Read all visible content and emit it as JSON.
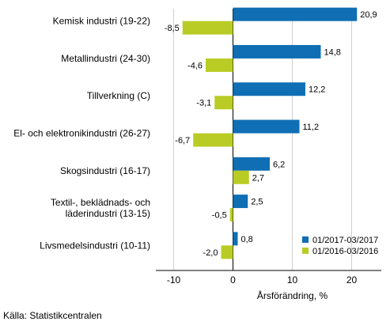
{
  "chart_data": {
    "type": "bar",
    "orientation": "horizontal",
    "categories": [
      [
        "Kemisk industri (19-22)"
      ],
      [
        "Metallindustri (24-30)"
      ],
      [
        "Tillverkning (C)"
      ],
      [
        "El- och elektronikindustri (26-27)"
      ],
      [
        "Skogsindustri (16-17)"
      ],
      [
        "Textil-, beklädnads- och",
        "läderindustri (13-15)"
      ],
      [
        "Livsmedelsindustri (10-11)"
      ]
    ],
    "series": [
      {
        "name": "01/2017-03/2017",
        "color": "#0f6eb4",
        "values": [
          20.9,
          14.8,
          12.2,
          11.2,
          6.2,
          2.5,
          0.8
        ],
        "labels": [
          "20,9",
          "14,8",
          "12,2",
          "11,2",
          "6,2",
          "2,5",
          "0,8"
        ]
      },
      {
        "name": "01/2016-03/2016",
        "color": "#b9cc25",
        "values": [
          -8.5,
          -4.6,
          -3.1,
          -6.7,
          2.7,
          -0.5,
          -2.0
        ],
        "labels": [
          "-8,5",
          "-4,6",
          "-3,1",
          "-6,7",
          "2,7",
          "-0,5",
          "-2,0"
        ]
      }
    ],
    "xlabel": "Årsförändring, %",
    "xlim": [
      -13,
      25
    ],
    "xticks": [
      -10,
      0,
      10,
      20
    ],
    "xtick_labels": [
      "-10",
      "0",
      "10",
      "20"
    ],
    "grid": "vertical",
    "legend": "bottom-right"
  },
  "source": "Källa: Statistikcentralen"
}
